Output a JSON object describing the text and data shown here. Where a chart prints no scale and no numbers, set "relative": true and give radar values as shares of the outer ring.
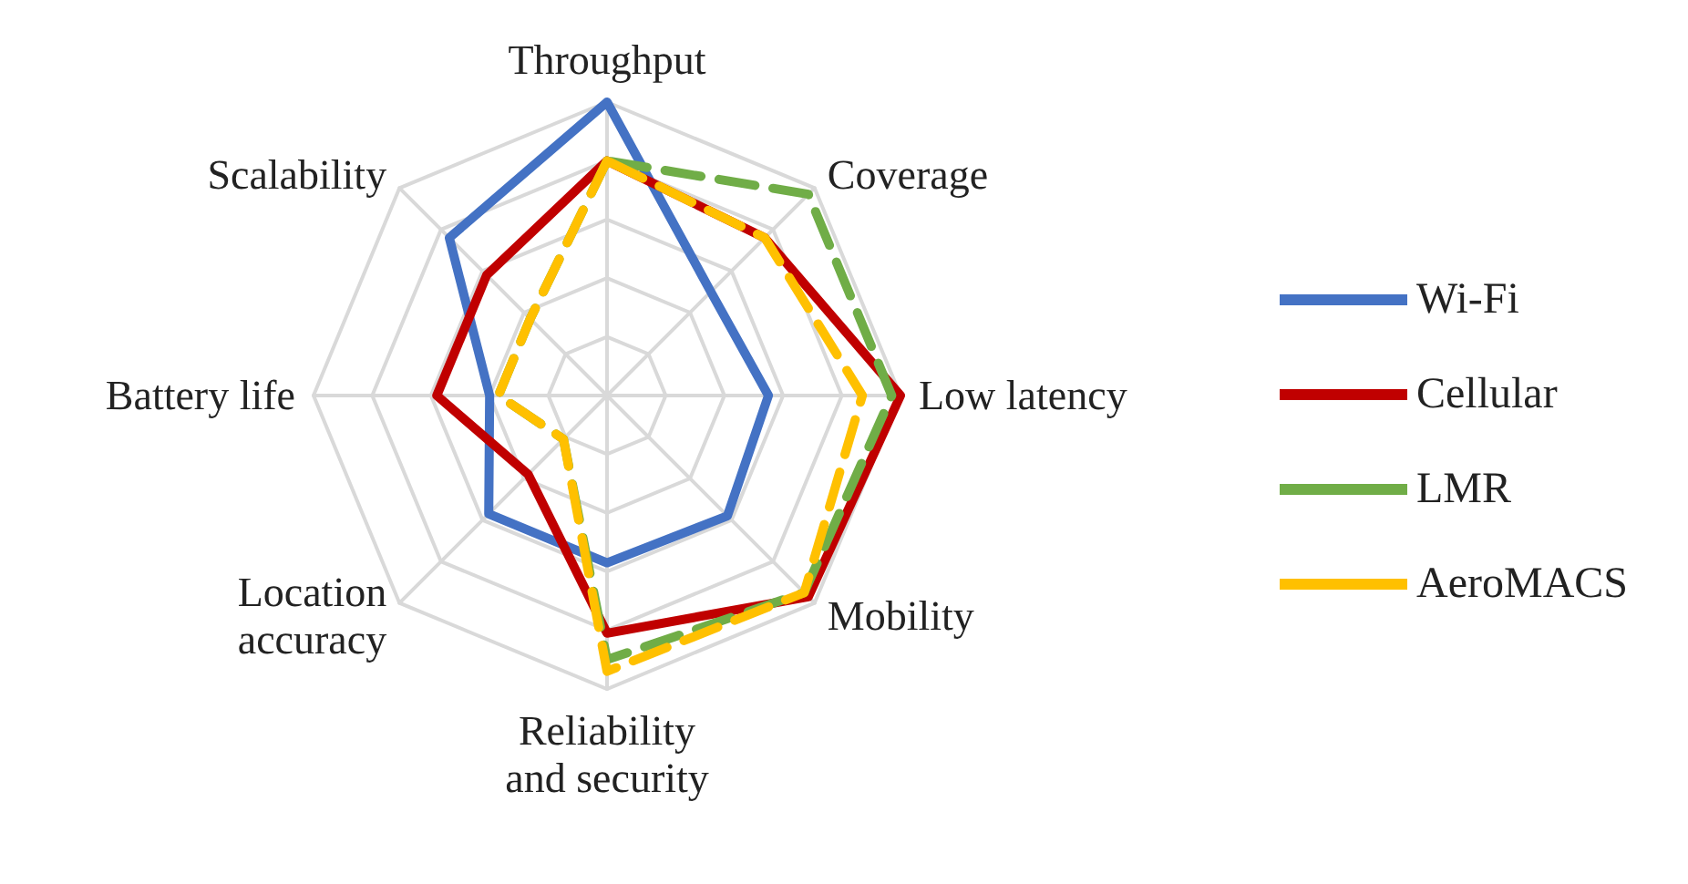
{
  "chart_data": {
    "type": "radar",
    "relative": true,
    "categories": [
      "Throughput",
      "Coverage",
      "Low latency",
      "Mobility",
      "Reliability and security",
      "Location accuracy",
      "Battery life",
      "Scalability"
    ],
    "series": [
      {
        "name": "Wi-Fi",
        "color": "#4472c4",
        "line_style": "solid",
        "values": [
          1.0,
          0.5,
          0.55,
          0.58,
          0.57,
          0.57,
          0.4,
          0.76
        ]
      },
      {
        "name": "Cellular",
        "color": "#c00000",
        "line_style": "solid",
        "values": [
          0.8,
          0.76,
          1.0,
          0.97,
          0.81,
          0.38,
          0.58,
          0.58
        ]
      },
      {
        "name": "LMR",
        "color": "#70ad47",
        "line_style": "dashed",
        "values": [
          0.8,
          0.97,
          0.97,
          0.95,
          0.9,
          0.21,
          0.37,
          0.37
        ]
      },
      {
        "name": "AeroMACS",
        "color": "#ffc000",
        "line_style": "dashed",
        "values": [
          0.8,
          0.76,
          0.87,
          0.95,
          0.94,
          0.21,
          0.37,
          0.37
        ]
      }
    ],
    "legend": "right",
    "marker": "none",
    "grid": true
  }
}
